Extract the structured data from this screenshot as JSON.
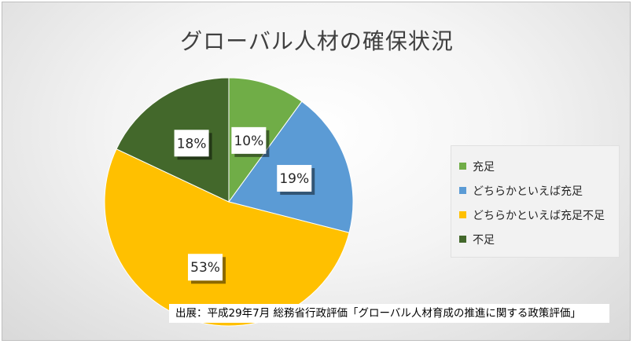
{
  "chart_data": {
    "type": "pie",
    "title": "グローバル人材の確保状況",
    "categories": [
      "充足",
      "どちらかといえば充足",
      "どちらかといえば充足不足",
      "不足"
    ],
    "values": [
      10,
      19,
      53,
      18
    ],
    "labels": [
      "10%",
      "19%",
      "53%",
      "18%"
    ],
    "colors": [
      "#70ad47",
      "#5b9bd5",
      "#ffc000",
      "#43682b"
    ],
    "legend_position": "right"
  },
  "source_note": "出展：平成29年7月 総務省行政評価「グローバル人材育成の推進に関する政策評価」"
}
